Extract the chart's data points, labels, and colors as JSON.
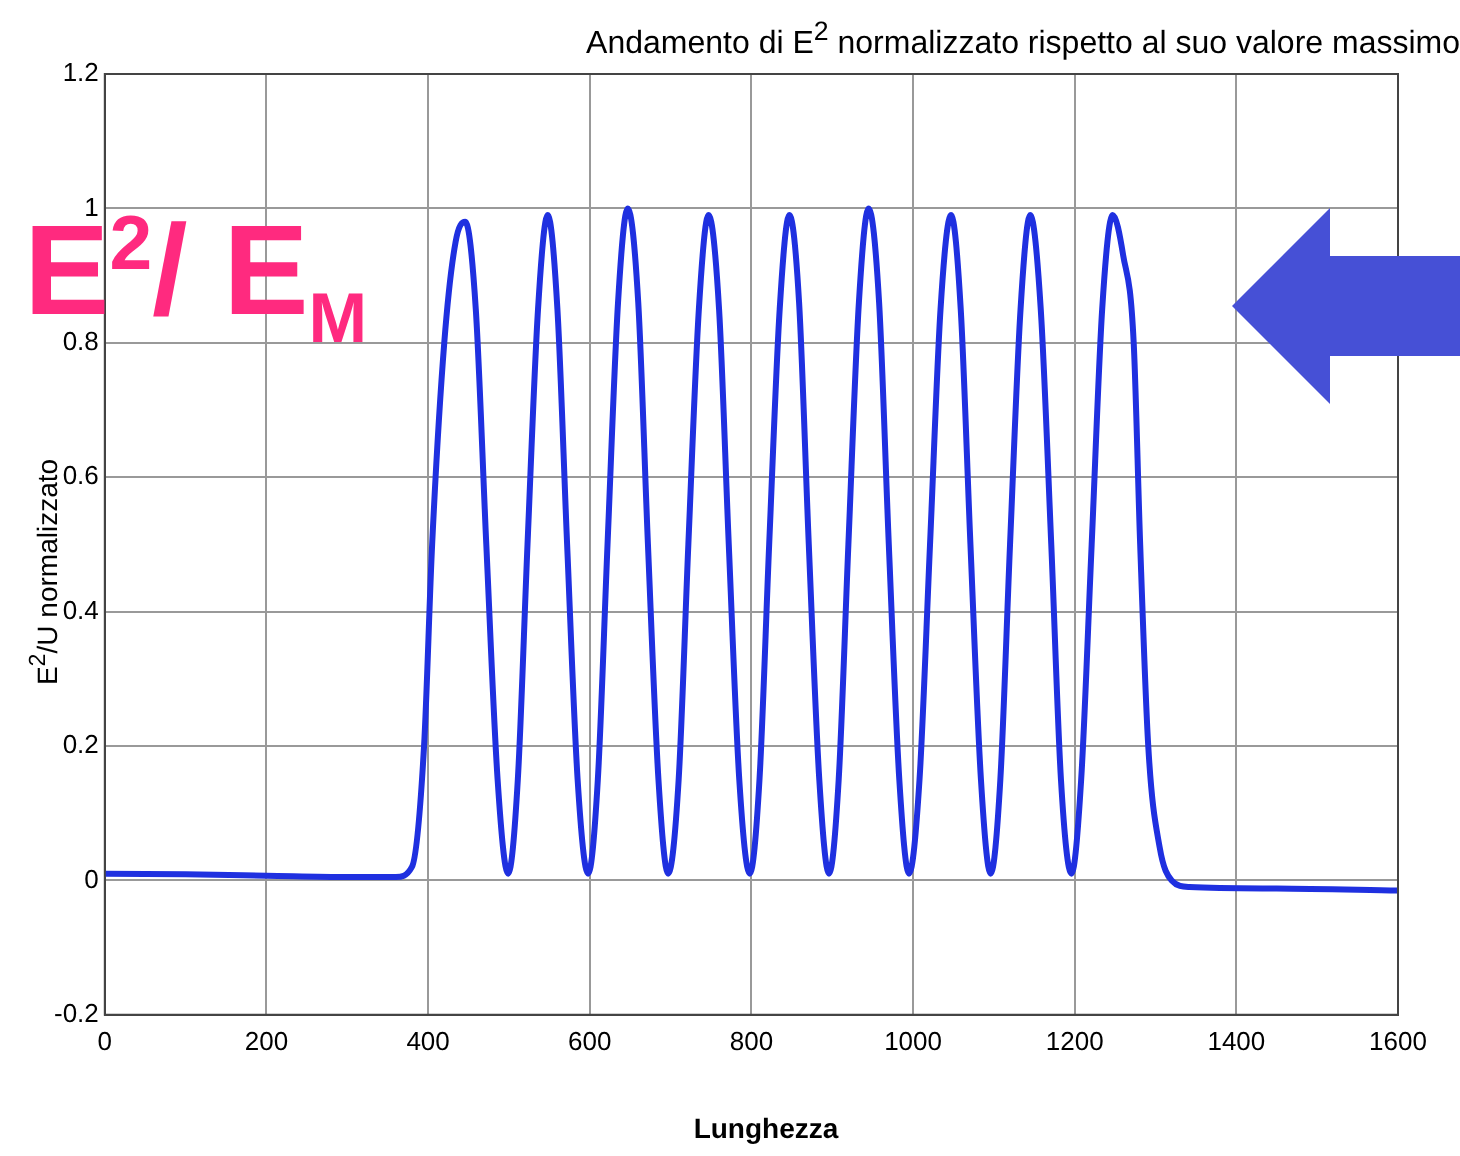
{
  "chart_data": {
    "type": "line",
    "title": "Andamento di E$^{2}$ normalizzato rispetto al suo valore massimo",
    "xlabel": "Lunghezza",
    "ylabel": "E$^{2}$/U normalizzato",
    "annotations": [
      "E$^{2}$/ E$_{M}$"
    ],
    "x": [
      0,
      100,
      200,
      300,
      360,
      380,
      395,
      405,
      420,
      434,
      446,
      459,
      472,
      486,
      499,
      511,
      523,
      536,
      548,
      560,
      572,
      585,
      598,
      610,
      622,
      635,
      647,
      660,
      672,
      685,
      697,
      710,
      722,
      735,
      747,
      760,
      772,
      785,
      798,
      810,
      822,
      835,
      847,
      859,
      871,
      884,
      896,
      908,
      920,
      933,
      945,
      958,
      970,
      983,
      995,
      1008,
      1021,
      1034,
      1047,
      1059,
      1071,
      1084,
      1096,
      1108,
      1120,
      1133,
      1145,
      1158,
      1171,
      1183,
      1196,
      1208,
      1221,
      1234,
      1247,
      1260,
      1273,
      1281,
      1291,
      1305,
      1320,
      1342,
      1450,
      1600
    ],
    "series": [
      {
        "color": "#1f30e0",
        "values": [
          0.01,
          0.009,
          0.007,
          0.005,
          0.005,
          0.02,
          0.2,
          0.5,
          0.8,
          0.95,
          0.98,
          0.85,
          0.5,
          0.15,
          0.01,
          0.15,
          0.5,
          0.85,
          0.99,
          0.85,
          0.5,
          0.15,
          0.01,
          0.15,
          0.5,
          0.86,
          1.0,
          0.86,
          0.5,
          0.15,
          0.01,
          0.15,
          0.5,
          0.85,
          0.99,
          0.85,
          0.5,
          0.15,
          0.01,
          0.15,
          0.5,
          0.85,
          0.99,
          0.86,
          0.5,
          0.15,
          0.01,
          0.15,
          0.5,
          0.86,
          1.0,
          0.86,
          0.5,
          0.15,
          0.01,
          0.15,
          0.5,
          0.85,
          0.99,
          0.85,
          0.5,
          0.15,
          0.01,
          0.15,
          0.5,
          0.85,
          0.99,
          0.85,
          0.5,
          0.15,
          0.01,
          0.15,
          0.5,
          0.85,
          0.99,
          0.93,
          0.8,
          0.5,
          0.2,
          0.05,
          0.0,
          -0.01,
          -0.012,
          -0.015
        ]
      }
    ],
    "xlim": [
      0,
      1600
    ],
    "ylim": [
      -0.2,
      1.2
    ],
    "xticks": [
      0,
      200,
      400,
      600,
      800,
      1000,
      1200,
      1400,
      1600
    ],
    "yticks": [
      -0.2,
      0,
      0.2,
      0.4,
      0.6,
      0.8,
      1,
      1.2
    ],
    "grid": true,
    "legend": false,
    "marker": "none",
    "line_style": "solid"
  }
}
